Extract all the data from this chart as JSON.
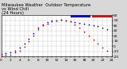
{
  "title": "Milwaukee Weather  Outdoor Temperature\nvs Wind Chill\n(24 Hours)",
  "bg_color": "#d8d8d8",
  "plot_bg": "#ffffff",
  "grid_color": "#aaaaaa",
  "temp_color": "#0000cc",
  "windchill_color": "#cc0000",
  "legend_temp_color": "#0000ff",
  "legend_wc_color": "#ff0000",
  "xlim": [
    0,
    24
  ],
  "ylim": [
    -20,
    60
  ],
  "yticks": [
    -20,
    -10,
    0,
    10,
    20,
    30,
    40,
    50,
    60
  ],
  "xticks": [
    0,
    1,
    2,
    3,
    4,
    5,
    6,
    7,
    8,
    9,
    10,
    11,
    12,
    13,
    14,
    15,
    16,
    17,
    18,
    19,
    20,
    21,
    22,
    23,
    24
  ],
  "temp_x": [
    0,
    1,
    2,
    3,
    4,
    5,
    6,
    7,
    8,
    9,
    10,
    11,
    12,
    13,
    14,
    15,
    16,
    17,
    18,
    19,
    20,
    21,
    22,
    23
  ],
  "temp_y": [
    -15,
    -14,
    -12,
    -8,
    -3,
    5,
    15,
    25,
    35,
    42,
    46,
    49,
    50,
    51,
    50,
    48,
    46,
    45,
    43,
    42,
    40,
    38,
    35,
    32
  ],
  "wc_x": [
    0,
    1,
    2,
    3,
    4,
    5,
    6,
    7,
    8,
    9,
    10,
    11,
    12,
    13,
    14,
    15,
    16,
    17,
    18,
    19,
    20,
    21,
    22,
    23
  ],
  "wc_y": [
    -18,
    -17,
    -16,
    -12,
    -8,
    -1,
    10,
    21,
    32,
    40,
    44,
    48,
    50,
    51,
    50,
    48,
    42,
    36,
    28,
    20,
    12,
    5,
    -2,
    -8
  ],
  "title_fontsize": 3.8,
  "tick_fontsize": 3.2,
  "marker_size": 1.5,
  "legend_bar_width": 0.18,
  "legend_bar_height": 0.055
}
